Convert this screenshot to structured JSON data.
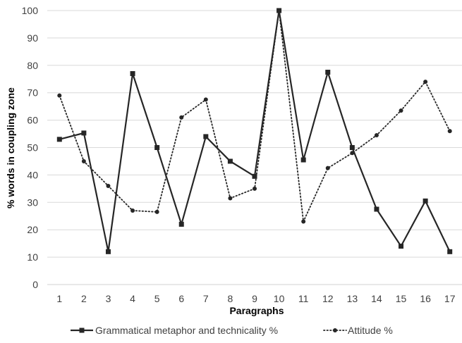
{
  "chart_data": {
    "type": "line",
    "xlabel": "Paragraphs",
    "ylabel": "% words in coupling zone",
    "ylim": [
      0,
      100
    ],
    "yticks": [
      0,
      10,
      20,
      30,
      40,
      50,
      60,
      70,
      80,
      90,
      100
    ],
    "categories": [
      "1",
      "2",
      "3",
      "4",
      "5",
      "6",
      "7",
      "8",
      "9",
      "10",
      "11",
      "12",
      "13",
      "14",
      "15",
      "16",
      "17"
    ],
    "grid": true,
    "legend_position": "bottom",
    "series": [
      {
        "name": "Grammatical metaphor and technicality %",
        "values": [
          53,
          55.3,
          12,
          77,
          50,
          22,
          54,
          45,
          39.5,
          100,
          45.5,
          77.5,
          50,
          27.5,
          14,
          30.5,
          12
        ],
        "style": "solid",
        "marker": "square",
        "color": "#262626"
      },
      {
        "name": "Attitude %",
        "values": [
          69,
          45,
          36,
          27,
          26.5,
          61,
          67.5,
          31.5,
          35,
          100,
          23,
          42.5,
          48,
          54.5,
          63.5,
          74,
          56
        ],
        "style": "dotted",
        "marker": "circle",
        "color": "#262626"
      }
    ]
  }
}
